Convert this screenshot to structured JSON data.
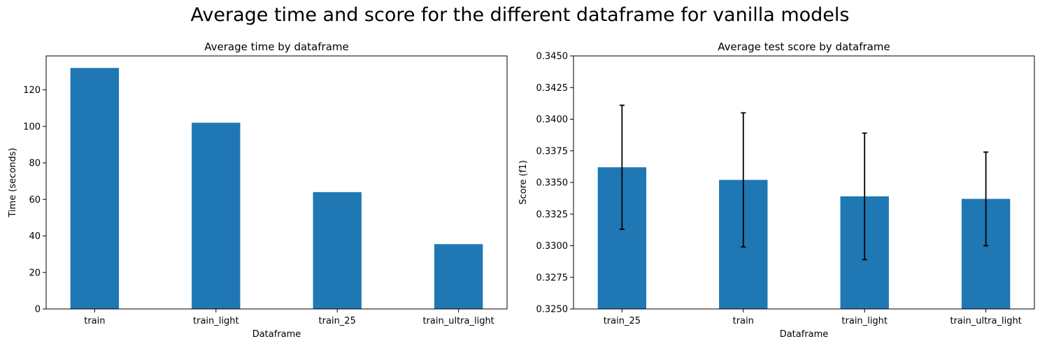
{
  "suptitle": "Average time and score for the different dataframe for vanilla models",
  "colors": {
    "bar": "#1f77b4",
    "errorbar": "#000000",
    "axis": "#000000"
  },
  "chart_data": [
    {
      "type": "bar",
      "title": "Average time by dataframe",
      "xlabel": "Dataframe",
      "ylabel": "Time (seconds)",
      "categories": [
        "train",
        "train_light",
        "train_25",
        "train_ultra_light"
      ],
      "values": [
        132,
        102,
        64,
        35.5
      ],
      "ylim": [
        0,
        138.6
      ],
      "yticks": [
        0,
        20,
        40,
        60,
        80,
        100,
        120
      ],
      "ytick_labels": [
        "0",
        "20",
        "40",
        "60",
        "80",
        "100",
        "120"
      ],
      "grid": false,
      "legend": "none"
    },
    {
      "type": "bar",
      "title": "Average test score by dataframe",
      "xlabel": "Dataframe",
      "ylabel": "Score (f1)",
      "categories": [
        "train_25",
        "train",
        "train_light",
        "train_ultra_light"
      ],
      "values": [
        0.3362,
        0.3352,
        0.3339,
        0.3337
      ],
      "error": [
        0.0049,
        0.0053,
        0.005,
        0.0037
      ],
      "ylim": [
        0.325,
        0.345
      ],
      "yticks": [
        0.325,
        0.3275,
        0.33,
        0.3325,
        0.335,
        0.3375,
        0.34,
        0.3425,
        0.345
      ],
      "ytick_labels": [
        "0.3250",
        "0.3275",
        "0.3300",
        "0.3325",
        "0.3350",
        "0.3375",
        "0.3400",
        "0.3425",
        "0.3450"
      ],
      "grid": false,
      "legend": "none"
    }
  ]
}
